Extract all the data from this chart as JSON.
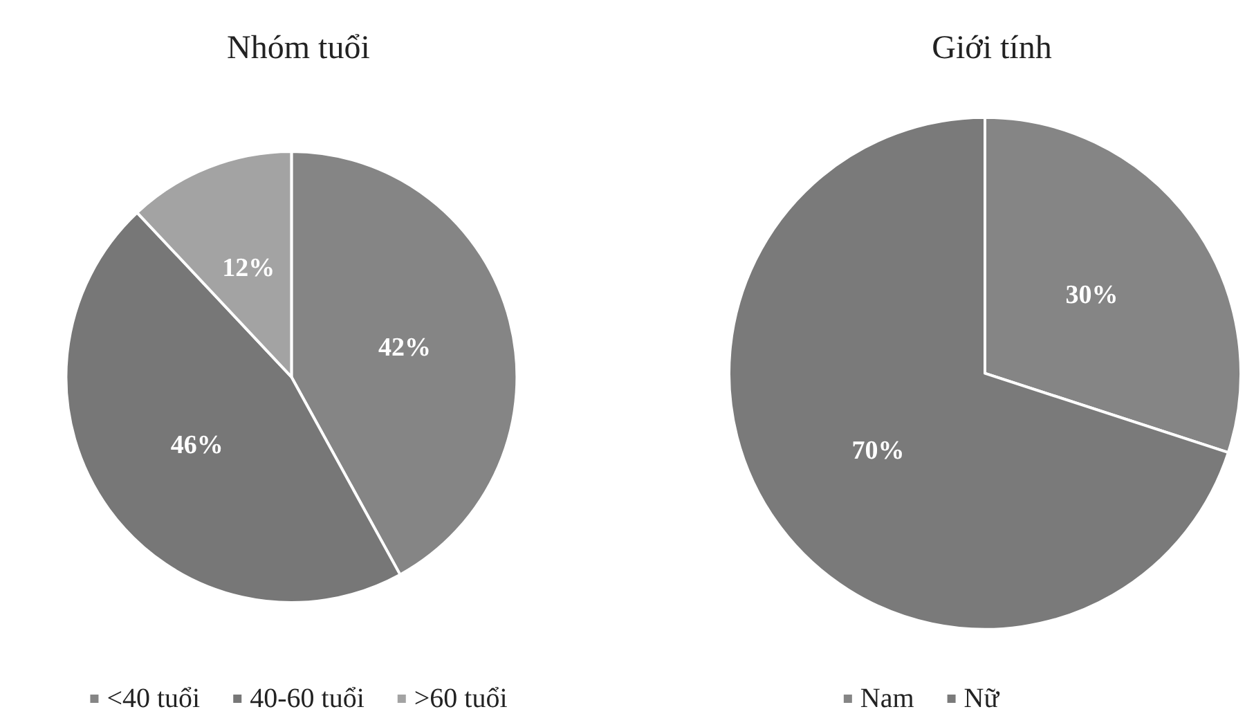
{
  "chart_data": [
    {
      "type": "pie",
      "title": "Nhóm tuổi",
      "categories": [
        "<40 tuổi",
        "40-60 tuổi",
        ">60 tuổi"
      ],
      "values": [
        42,
        46,
        12
      ],
      "colors": [
        "#858585",
        "#777777",
        "#a3a3a3"
      ],
      "value_labels": [
        "42%",
        "46%",
        "12%"
      ],
      "legend": "bottom"
    },
    {
      "type": "pie",
      "title": "Giới tính",
      "categories": [
        "Nam",
        "Nữ"
      ],
      "values": [
        30,
        70
      ],
      "colors": [
        "#858585",
        "#7a7a7a"
      ],
      "value_labels": [
        "30%",
        "70%"
      ],
      "legend": "bottom"
    }
  ]
}
